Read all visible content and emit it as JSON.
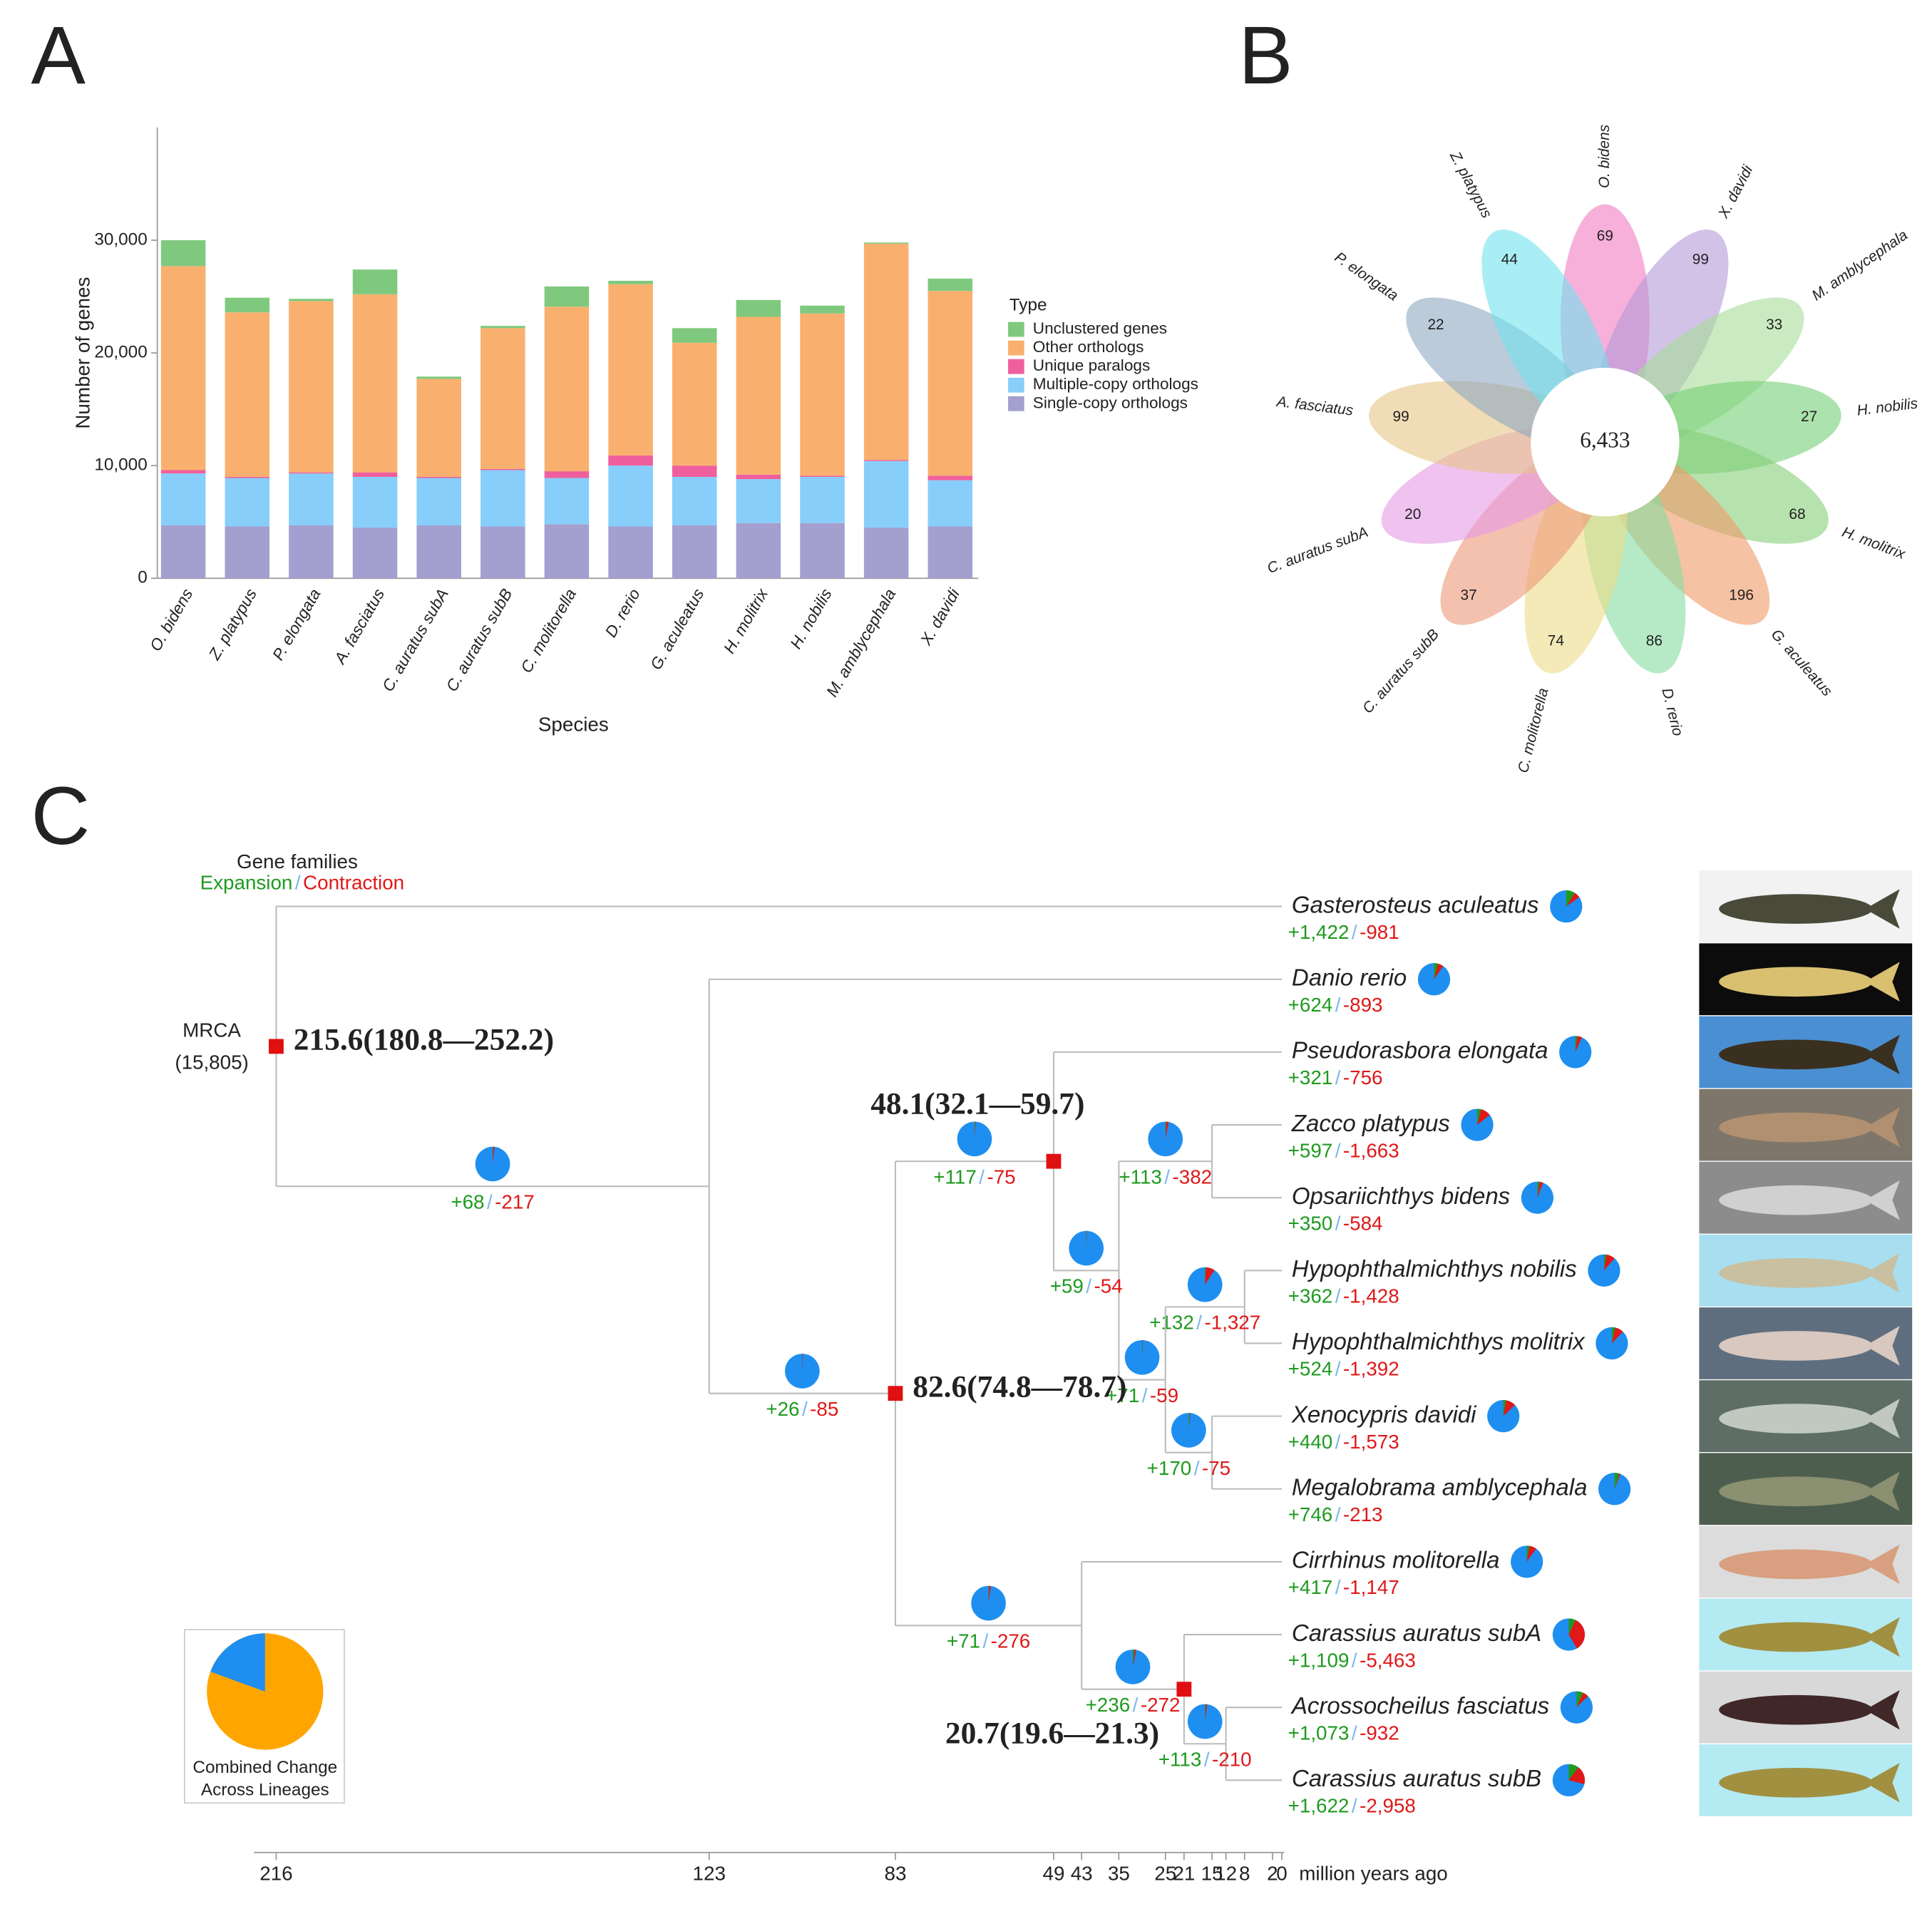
{
  "chart_data": [
    {
      "type": "bar",
      "panel": "A",
      "stacked": true,
      "x_label": "Species",
      "y_label": "Number of genes",
      "legend_title": "Type",
      "categories": [
        "O. bidens",
        "Z. platypus",
        "P. elongata",
        "A. fasciatus",
        "C. auratus subA",
        "C. auratus subB",
        "C. molitorella",
        "D. rerio",
        "G. aculeatus",
        "H. molitrix",
        "H. nobilis",
        "M. amblycephala",
        "X. davidi"
      ],
      "series": [
        {
          "name": "Unclustered genes",
          "color": "#7fc97f",
          "values": [
            2300,
            1300,
            200,
            2200,
            200,
            200,
            1800,
            300,
            1300,
            1500,
            700,
            100,
            1100
          ]
        },
        {
          "name": "Other orthologs",
          "color": "#f9b06e",
          "values": [
            18100,
            14600,
            15200,
            15800,
            8700,
            12500,
            14600,
            15200,
            10900,
            14000,
            14400,
            19200,
            16400
          ]
        },
        {
          "name": "Unique paralogs",
          "color": "#ef5f9e",
          "values": [
            300,
            100,
            100,
            400,
            100,
            100,
            600,
            900,
            1000,
            400,
            100,
            100,
            400
          ]
        },
        {
          "name": "Multiple-copy orthologs",
          "color": "#87cefa",
          "values": [
            4600,
            4300,
            4600,
            4500,
            4200,
            5000,
            4100,
            5400,
            4300,
            3900,
            4100,
            5900,
            4100
          ]
        },
        {
          "name": "Single-copy orthologs",
          "color": "#a39fcf",
          "values": [
            4700,
            4600,
            4700,
            4500,
            4700,
            4600,
            4800,
            4600,
            4700,
            4900,
            4900,
            4500,
            4600
          ]
        }
      ],
      "ylim": [
        0,
        40000
      ],
      "yticks": [
        0,
        {
          "value": 10000,
          "label": "10,000"
        },
        {
          "value": 20000,
          "label": "20,000"
        },
        {
          "value": 30000,
          "label": "30,000"
        }
      ]
    },
    {
      "type": "flower",
      "panel": "B",
      "center": {
        "value": 6433,
        "label": "6,433"
      },
      "categories": [
        "O. bidens",
        "X. davidi",
        "M. amblycephala",
        "H. nobilis",
        "H. molitrix",
        "G. aculeatus",
        "D. rerio",
        "C. molitorella",
        "C. auratus subB",
        "C. auratus subA",
        "A. fasciatus",
        "P. elongata",
        "Z. platypus"
      ],
      "values": [
        69,
        99,
        33,
        27,
        68,
        196,
        86,
        74,
        37,
        20,
        99,
        22,
        44
      ],
      "colors": [
        "#f07cc0",
        "#b49ad8",
        "#a6dc98",
        "#74cf74",
        "#86cf78",
        "#f09a68",
        "#86dca0",
        "#ecdc88",
        "#ec9878",
        "#e49ae4",
        "#e6c486",
        "#8ea8c0",
        "#72e2ee"
      ]
    },
    {
      "type": "tree",
      "panel": "C",
      "legend_title": "Gene families",
      "expansion_label": "Expansion",
      "contraction_label": "Contraction",
      "separator": "/",
      "expansion_color": "#1f9a1f",
      "contraction_color": "#e01818",
      "unchanged_color": "#1e8ff0",
      "date_color": "#55c8e8",
      "pie_legend": [
        "Combined Change",
        "Across Lineages"
      ],
      "x_label": "million years ago",
      "xlim": [
        216,
        0
      ],
      "xticks": [
        216,
        123,
        83,
        49,
        43,
        35,
        25,
        21,
        15,
        12,
        8,
        2,
        0
      ],
      "tree": {
        "age": 216,
        "label": "MRCA",
        "size": 15805,
        "size_label": "(15,805)",
        "date": "215.6(180.8—252.2)",
        "children": [
          {
            "name": "Gasterosteus aculeatus",
            "expansion": 1422,
            "contraction": -981,
            "value_labels": [
              "+1,422",
              "-981"
            ]
          },
          {
            "age": 123,
            "expansion": 68,
            "contraction": -217,
            "value_labels": [
              "+68",
              "-217"
            ],
            "children": [
              {
                "name": "Danio rerio",
                "expansion": 624,
                "contraction": -893,
                "value_labels": [
                  "+624",
                  "-893"
                ]
              },
              {
                "age": 83,
                "expansion": 26,
                "contraction": -85,
                "value_labels": [
                  "+26",
                  "-85"
                ],
                "date": "82.6(74.8—78.7)",
                "children": [
                  {
                    "age": 49,
                    "expansion": 117,
                    "contraction": -75,
                    "value_labels": [
                      "+117",
                      "-75"
                    ],
                    "date": "48.1(32.1—59.7)",
                    "children": [
                      {
                        "name": "Pseudorasbora elongata",
                        "expansion": 321,
                        "contraction": -756,
                        "value_labels": [
                          "+321",
                          "-756"
                        ]
                      },
                      {
                        "age": 35,
                        "expansion": 59,
                        "contraction": -54,
                        "value_labels": [
                          "+59",
                          "-54"
                        ],
                        "children": [
                          {
                            "age": 15,
                            "expansion": 113,
                            "contraction": -382,
                            "value_labels": [
                              "+113",
                              "-382"
                            ],
                            "children": [
                              {
                                "name": "Zacco platypus",
                                "expansion": 597,
                                "contraction": -1663,
                                "value_labels": [
                                  "+597",
                                  "-1,663"
                                ]
                              },
                              {
                                "name": "Opsariichthys bidens",
                                "expansion": 350,
                                "contraction": -584,
                                "value_labels": [
                                  "+350",
                                  "-584"
                                ]
                              }
                            ]
                          },
                          {
                            "age": 25,
                            "expansion": 71,
                            "contraction": -59,
                            "value_labels": [
                              "+71",
                              "-59"
                            ],
                            "children": [
                              {
                                "age": 8,
                                "expansion": 132,
                                "contraction": -1327,
                                "value_labels": [
                                  "+132",
                                  "-1,327"
                                ],
                                "children": [
                                  {
                                    "name": "Hypophthalmichthys nobilis",
                                    "expansion": 362,
                                    "contraction": -1428,
                                    "value_labels": [
                                      "+362",
                                      "-1,428"
                                    ]
                                  },
                                  {
                                    "name": "Hypophthalmichthys molitrix",
                                    "expansion": 524,
                                    "contraction": -1392,
                                    "value_labels": [
                                      "+524",
                                      "-1,392"
                                    ]
                                  }
                                ]
                              },
                              {
                                "age": 15,
                                "expansion": 170,
                                "contraction": -75,
                                "value_labels": [
                                  "+170",
                                  "-75"
                                ],
                                "children": [
                                  {
                                    "name": "Xenocypris davidi",
                                    "expansion": 440,
                                    "contraction": -1573,
                                    "value_labels": [
                                      "+440",
                                      "-1,573"
                                    ]
                                  },
                                  {
                                    "name": "Megalobrama amblycephala",
                                    "expansion": 746,
                                    "contraction": -213,
                                    "value_labels": [
                                      "+746",
                                      "-213"
                                    ]
                                  }
                                ]
                              }
                            ]
                          }
                        ]
                      }
                    ]
                  },
                  {
                    "age": 43,
                    "expansion": 71,
                    "contraction": -276,
                    "value_labels": [
                      "+71",
                      "-276"
                    ],
                    "children": [
                      {
                        "name": "Cirrhinus molitorella",
                        "expansion": 417,
                        "contraction": -1147,
                        "value_labels": [
                          "+417",
                          "-1,147"
                        ]
                      },
                      {
                        "age": 21,
                        "expansion": 236,
                        "contraction": -272,
                        "value_labels": [
                          "+236",
                          "-272"
                        ],
                        "date": "20.7(19.6—21.3)",
                        "children": [
                          {
                            "name": "Carassius auratus subA",
                            "expansion": 1109,
                            "contraction": -5463,
                            "value_labels": [
                              "+1,109",
                              "-5,463"
                            ]
                          },
                          {
                            "age": 12,
                            "expansion": 113,
                            "contraction": -210,
                            "value_labels": [
                              "+113",
                              "-210"
                            ],
                            "children": [
                              {
                                "name": "Acrossocheilus fasciatus",
                                "expansion": 1073,
                                "contraction": -932,
                                "value_labels": [
                                  "+1,073",
                                  "-932"
                                ]
                              },
                              {
                                "name": "Carassius auratus subB",
                                "expansion": 1622,
                                "contraction": -2958,
                                "value_labels": [
                                  "+1,622",
                                  "-2,958"
                                ]
                              }
                            ]
                          }
                        ]
                      }
                    ]
                  }
                ]
              }
            ]
          }
        ]
      }
    }
  ]
}
